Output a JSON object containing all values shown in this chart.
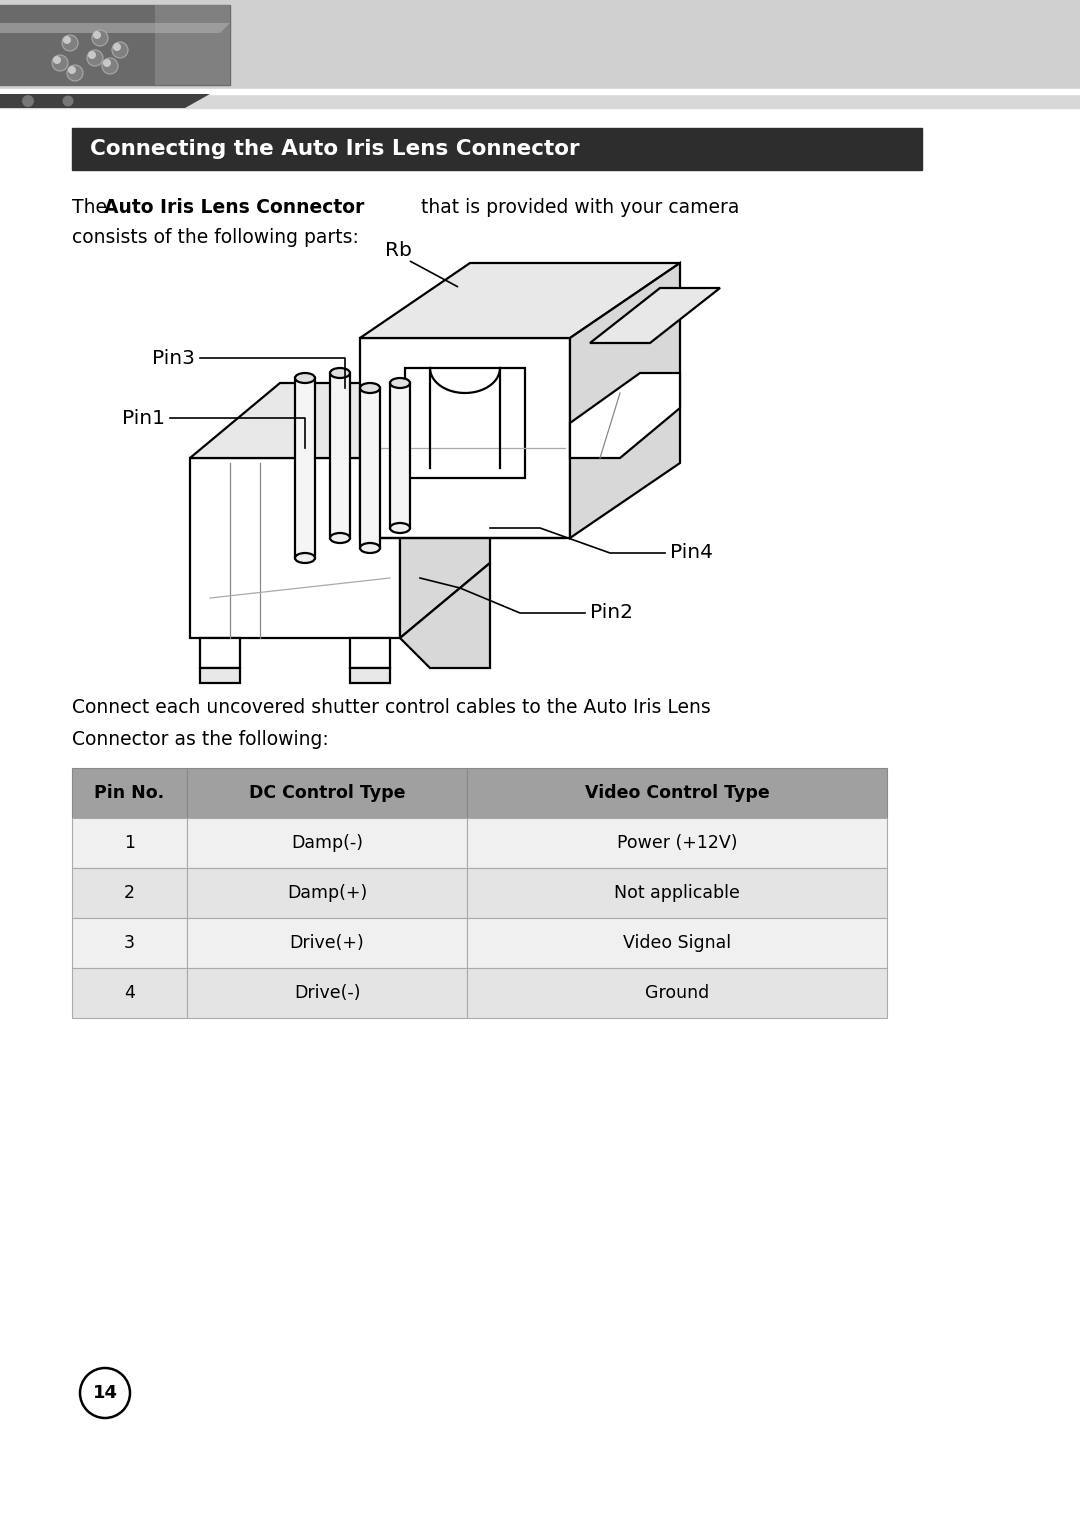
{
  "title": "Connecting the Auto Iris Lens Connector",
  "title_bg": "#2d2d2d",
  "title_color": "#ffffff",
  "connect_text_line1": "Connect each uncovered shutter control cables to the Auto Iris Lens",
  "connect_text_line2": "Connector as the following:",
  "intro_line2": "consists of the following parts:",
  "table_headers": [
    "Pin No.",
    "DC Control Type",
    "Video Control Type"
  ],
  "table_rows": [
    [
      "1",
      "Damp(-)",
      "Power (+12V)"
    ],
    [
      "2",
      "Damp(+)",
      "Not applicable"
    ],
    [
      "3",
      "Drive(+)",
      "Video Signal"
    ],
    [
      "4",
      "Drive(-)",
      "Ground"
    ]
  ],
  "table_header_bg": "#a0a0a0",
  "table_row_bg_light": "#f0f0f0",
  "table_row_bg_mid": "#e4e4e4",
  "page_number": "14",
  "bg_color": "#ffffff"
}
